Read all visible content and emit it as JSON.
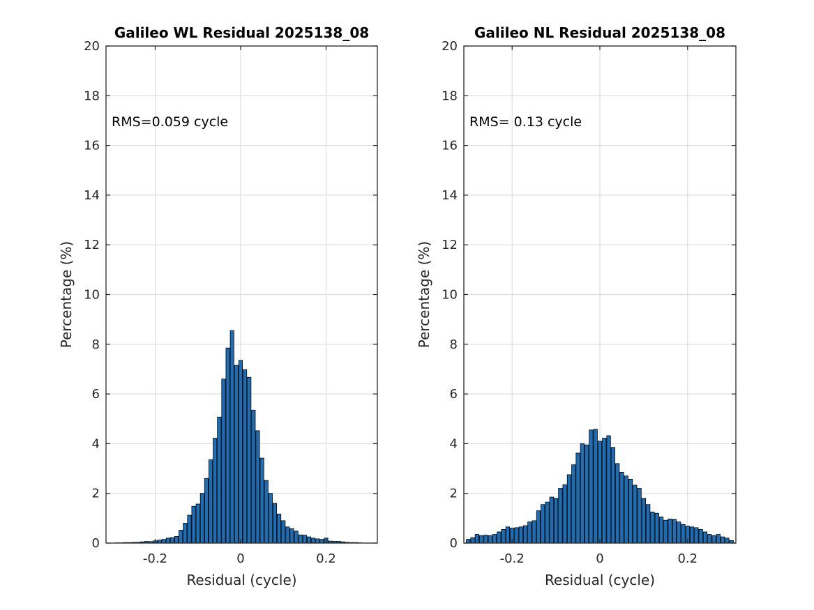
{
  "colors": {
    "bar_fill": "#1f6db5",
    "bar_edge": "#000000",
    "grid": "#dedede",
    "axis": "#262626"
  },
  "chart_data": [
    {
      "type": "bar",
      "title": "Galileo WL Residual 2025138_08",
      "xlabel": "Residual (cycle)",
      "ylabel": "Percentage (%)",
      "annotation": "RMS=0.059 cycle",
      "xlim": [
        -0.315,
        0.32
      ],
      "ylim": [
        0,
        20
      ],
      "xticks": [
        -0.2,
        0,
        0.2
      ],
      "xtick_labels": [
        "-0.2",
        "0",
        "0.2"
      ],
      "yticks": [
        0,
        2,
        4,
        6,
        8,
        10,
        12,
        14,
        16,
        18,
        20
      ],
      "ytick_labels": [
        "0",
        "2",
        "4",
        "6",
        "8",
        "10",
        "12",
        "14",
        "16",
        "18",
        "20"
      ],
      "grid": true,
      "bin_width": 0.01,
      "x": [
        -0.29,
        -0.28,
        -0.27,
        -0.26,
        -0.25,
        -0.24,
        -0.23,
        -0.22,
        -0.21,
        -0.2,
        -0.19,
        -0.18,
        -0.17,
        -0.16,
        -0.15,
        -0.14,
        -0.13,
        -0.12,
        -0.11,
        -0.1,
        -0.09,
        -0.08,
        -0.07,
        -0.06,
        -0.05,
        -0.04,
        -0.03,
        -0.02,
        -0.01,
        0.0,
        0.01,
        0.02,
        0.03,
        0.04,
        0.05,
        0.06,
        0.07,
        0.08,
        0.09,
        0.1,
        0.11,
        0.12,
        0.13,
        0.14,
        0.15,
        0.16,
        0.17,
        0.18,
        0.19,
        0.2,
        0.21,
        0.22,
        0.23,
        0.24,
        0.25,
        0.26,
        0.27,
        0.28
      ],
      "values": [
        0.01,
        0.01,
        0.02,
        0.02,
        0.03,
        0.03,
        0.05,
        0.07,
        0.06,
        0.09,
        0.12,
        0.15,
        0.2,
        0.22,
        0.27,
        0.52,
        0.8,
        1.12,
        1.48,
        1.57,
        2.0,
        2.6,
        3.35,
        4.22,
        5.07,
        6.6,
        7.85,
        8.55,
        7.15,
        7.35,
        6.98,
        6.67,
        5.35,
        4.52,
        3.42,
        2.52,
        2.0,
        1.6,
        1.17,
        0.9,
        0.65,
        0.58,
        0.48,
        0.33,
        0.32,
        0.25,
        0.2,
        0.17,
        0.15,
        0.2,
        0.08,
        0.07,
        0.07,
        0.05,
        0.03,
        0.02,
        0.02,
        0.01
      ]
    },
    {
      "type": "bar",
      "title": "Galileo NL Residual 2025138_08",
      "xlabel": "Residual (cycle)",
      "ylabel": "Percentage (%)",
      "annotation": "RMS= 0.13 cycle",
      "xlim": [
        -0.31,
        0.31
      ],
      "ylim": [
        0,
        20
      ],
      "xticks": [
        -0.2,
        0,
        0.2
      ],
      "xtick_labels": [
        "-0.2",
        "0",
        "0.2"
      ],
      "yticks": [
        0,
        2,
        4,
        6,
        8,
        10,
        12,
        14,
        16,
        18,
        20
      ],
      "ytick_labels": [
        "0",
        "2",
        "4",
        "6",
        "8",
        "10",
        "12",
        "14",
        "16",
        "18",
        "20"
      ],
      "grid": true,
      "bin_width": 0.01,
      "x": [
        -0.3,
        -0.29,
        -0.28,
        -0.27,
        -0.26,
        -0.25,
        -0.24,
        -0.23,
        -0.22,
        -0.21,
        -0.2,
        -0.19,
        -0.18,
        -0.17,
        -0.16,
        -0.15,
        -0.14,
        -0.13,
        -0.12,
        -0.11,
        -0.1,
        -0.09,
        -0.08,
        -0.07,
        -0.06,
        -0.05,
        -0.04,
        -0.03,
        -0.02,
        -0.01,
        0.0,
        0.01,
        0.02,
        0.03,
        0.04,
        0.05,
        0.06,
        0.07,
        0.08,
        0.09,
        0.1,
        0.11,
        0.12,
        0.13,
        0.14,
        0.15,
        0.16,
        0.17,
        0.18,
        0.19,
        0.2,
        0.21,
        0.22,
        0.23,
        0.24,
        0.25,
        0.26,
        0.27,
        0.28,
        0.29,
        0.3
      ],
      "values": [
        0.15,
        0.22,
        0.35,
        0.3,
        0.32,
        0.3,
        0.35,
        0.45,
        0.55,
        0.65,
        0.6,
        0.62,
        0.65,
        0.7,
        0.85,
        0.9,
        1.3,
        1.55,
        1.65,
        1.85,
        1.8,
        2.2,
        2.35,
        2.75,
        3.15,
        3.62,
        4.0,
        3.95,
        4.55,
        4.58,
        4.1,
        4.22,
        4.32,
        3.85,
        3.2,
        2.85,
        2.7,
        2.57,
        2.33,
        2.2,
        1.8,
        1.55,
        1.25,
        1.2,
        1.05,
        0.92,
        0.97,
        0.95,
        0.85,
        0.75,
        0.68,
        0.65,
        0.62,
        0.55,
        0.45,
        0.35,
        0.3,
        0.35,
        0.25,
        0.2,
        0.1
      ]
    }
  ]
}
